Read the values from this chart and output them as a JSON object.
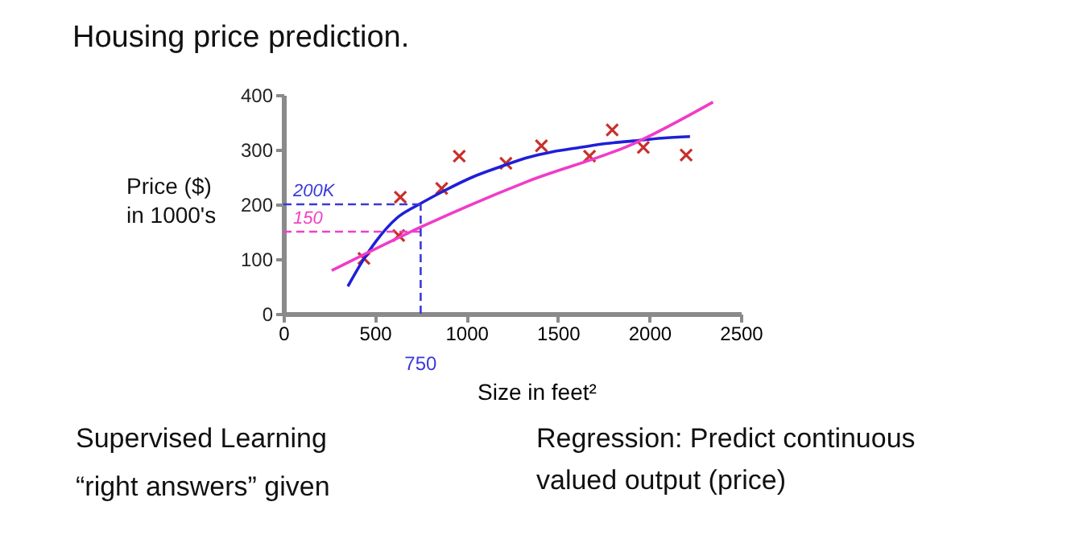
{
  "chart_data": {
    "type": "scatter",
    "title": "Housing price prediction.",
    "xlabel": "Size in feet²",
    "ylabel": "Price ($)\nin 1000's",
    "xlim": [
      0,
      2500
    ],
    "xticks": [
      0,
      500,
      1000,
      1500,
      2000,
      2500
    ],
    "ylim": [
      0,
      400
    ],
    "yticks": [
      0,
      100,
      200,
      300,
      400
    ],
    "grid": false,
    "series": [
      {
        "marker": "cross",
        "color": "#c8302c",
        "x": [
          440,
          630,
          639,
          865,
          961,
          1216,
          1410,
          1673,
          1797,
          1967,
          2201
        ],
        "values": [
          101,
          143,
          213,
          229,
          288,
          275,
          307,
          288,
          336,
          304,
          290
        ]
      },
      {
        "type": "line",
        "marker": "none",
        "color": "#1f1fd8",
        "x": [
          352,
          430,
          507,
          620,
          742,
          880,
          1035,
          1180,
          1328,
          1470,
          1621,
          1760,
          1914,
          2070,
          2222
        ],
        "values": [
          50,
          95,
          133,
          175,
          200,
          225,
          250,
          268,
          285,
          296,
          304,
          311,
          316,
          321,
          324
        ]
      },
      {
        "type": "line",
        "marker": "none",
        "color": "#f03cc8",
        "x": [
          264,
          742,
          1328,
          1914,
          2348
        ],
        "values": [
          79,
          157,
          241,
          311,
          387
        ]
      }
    ],
    "ref_lines": [
      {
        "axis": "y",
        "value": 200,
        "label": "200K",
        "color": "#3a3ad8",
        "line_style": "dashed"
      },
      {
        "axis": "y",
        "value": 150,
        "label": "150",
        "color": "#f040c8",
        "line_style": "dashed"
      },
      {
        "axis": "x",
        "value": 750,
        "label": "750",
        "color": "#3a3ad8",
        "line_style": "dashed"
      }
    ],
    "annotations": [
      "Supervised Learning",
      "“right answers” given",
      "Regression: Predict continuous\nvalued output (price)"
    ]
  }
}
